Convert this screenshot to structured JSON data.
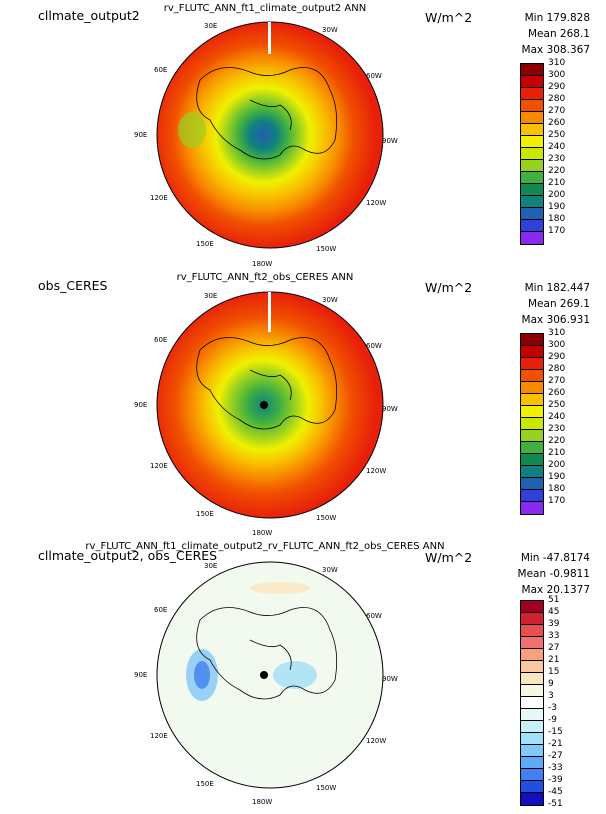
{
  "panels": [
    {
      "case_label": "cllmate_output2",
      "plot_title": "rv_FLUTC_ANN_ft1_climate_output2  ANN",
      "units": "W/m^2",
      "stats": {
        "min": "Min 179.828",
        "mean": "Mean 268.1",
        "max": "Max 308.367"
      },
      "lon_labels": [
        "30E",
        "30W",
        "60E",
        "60W",
        "90E",
        "90W",
        "120E",
        "120W",
        "150E",
        "150W",
        "180W"
      ],
      "colorbar": {
        "labels": [
          "310",
          "300",
          "290",
          "280",
          "270",
          "260",
          "250",
          "240",
          "230",
          "220",
          "210",
          "200",
          "190",
          "180",
          "170"
        ],
        "colors": [
          "#8b0000",
          "#c40000",
          "#e8200a",
          "#f05000",
          "#f88a00",
          "#f8c000",
          "#f0f000",
          "#c8e800",
          "#98d020",
          "#40b040",
          "#108a50",
          "#108080",
          "#2060b0",
          "#3040d8",
          "#8a2af0"
        ]
      }
    },
    {
      "case_label": "obs_CERES",
      "plot_title": "rv_FLUTC_ANN_ft2_obs_CERES  ANN",
      "units": "W/m^2",
      "stats": {
        "min": "Min 182.447",
        "mean": "Mean 269.1",
        "max": "Max 306.931"
      },
      "lon_labels": [
        "30E",
        "30W",
        "60E",
        "60W",
        "90E",
        "90W",
        "120E",
        "120W",
        "150E",
        "150W",
        "180W"
      ],
      "colorbar": {
        "labels": [
          "310",
          "300",
          "290",
          "280",
          "270",
          "260",
          "250",
          "240",
          "230",
          "220",
          "210",
          "200",
          "190",
          "180",
          "170"
        ],
        "colors": [
          "#8b0000",
          "#c40000",
          "#e8200a",
          "#f05000",
          "#f88a00",
          "#f8c000",
          "#f0f000",
          "#c8e800",
          "#98d020",
          "#40b040",
          "#108a50",
          "#108080",
          "#2060b0",
          "#3040d8",
          "#8a2af0"
        ]
      }
    },
    {
      "case_label": "cllmate_output2, obs_CERES",
      "plot_title": "rv_FLUTC_ANN_ft1_climate_output2_rv_FLUTC_ANN_ft2_obs_CERES  ANN",
      "units": "W/m^2",
      "stats": {
        "min": "Min -47.8174",
        "mean": "Mean -0.9811",
        "max": "Max 20.1377"
      },
      "lon_labels": [
        "30E",
        "30W",
        "60E",
        "60W",
        "90E",
        "90W",
        "120E",
        "120W",
        "150E",
        "150W",
        "180W"
      ],
      "colorbar": {
        "labels": [
          "51",
          "45",
          "39",
          "33",
          "27",
          "21",
          "15",
          "9",
          "3",
          "-3",
          "-9",
          "-15",
          "-21",
          "-27",
          "-33",
          "-39",
          "-45",
          "-51"
        ],
        "colors": [
          "#a00020",
          "#d02030",
          "#e85050",
          "#f07070",
          "#f8a080",
          "#f8c8a0",
          "#f8e8c0",
          "#f8f8e0",
          "#ffffff",
          "#e8f8f8",
          "#c8f0f8",
          "#a0e0f8",
          "#80c8f8",
          "#60a8f8",
          "#4080f0",
          "#2050e0",
          "#1010c0"
        ]
      }
    }
  ]
}
